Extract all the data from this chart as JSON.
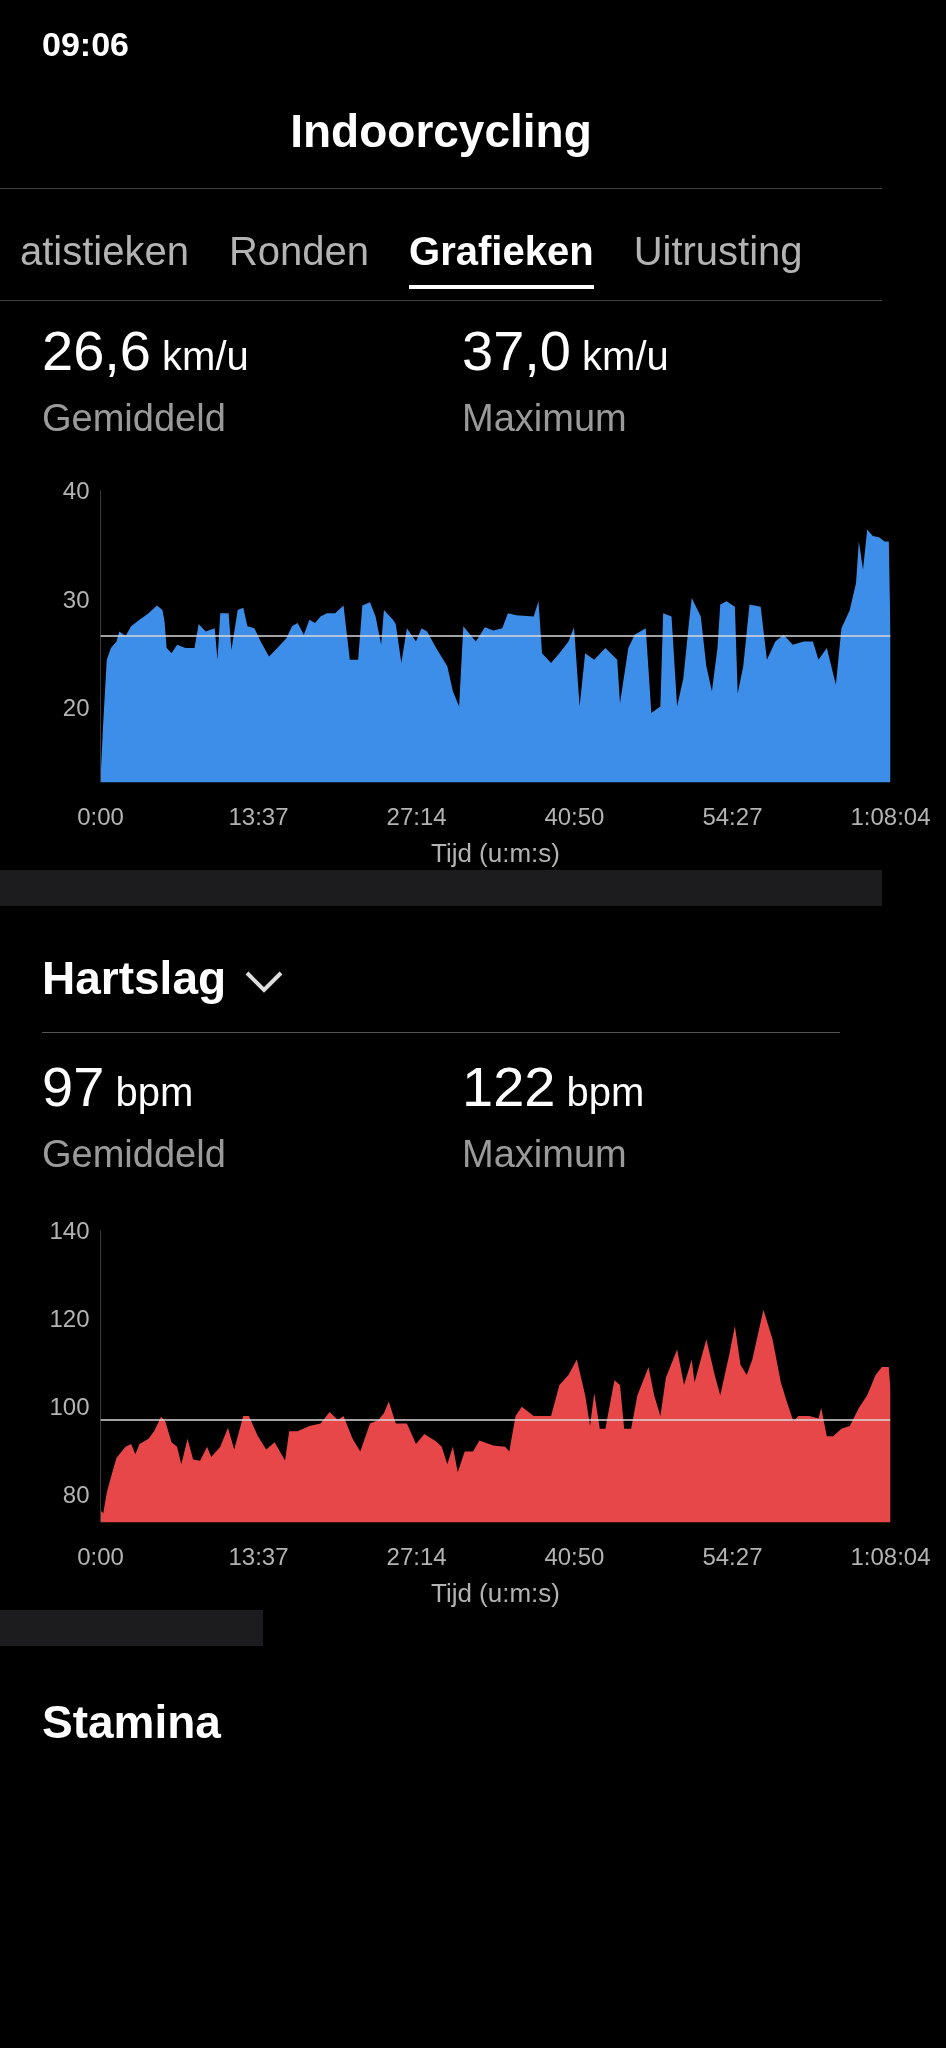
{
  "chart_data": [
    {
      "type": "area",
      "title": "Indoorcycling",
      "xlabel": "Tijd (u:m:s)",
      "annotations": [
        "09:06",
        "atistieken",
        "Ronden",
        "Grafieken",
        "Uitrusting",
        "26,6 km/u",
        "Gemiddeld",
        "37,0 km/u",
        "Maximum"
      ],
      "xlim": [
        0,
        68.067
      ],
      "ylim": [
        13.1,
        40
      ],
      "yticks": [
        20,
        30,
        40
      ],
      "xticks": [
        {
          "value": 0,
          "label": "0:00"
        },
        {
          "value": 13.617,
          "label": "13:37"
        },
        {
          "value": 27.233,
          "label": "27:14"
        },
        {
          "value": 40.833,
          "label": "40:50"
        },
        {
          "value": 54.45,
          "label": "54:27"
        },
        {
          "value": 68.067,
          "label": "1:08:04"
        }
      ],
      "grid": false,
      "ref_lines": [
        {
          "axis": "y",
          "value": 26.6,
          "color": "#d9d9d9"
        }
      ],
      "series": [
        {
          "color": "#3d8ee8",
          "x": [
            0,
            0.06,
            0.24,
            0.54,
            0.9,
            1.38,
            1.62,
            2.16,
            2.64,
            3.36,
            4.14,
            4.86,
            5.34,
            5.52,
            5.7,
            6.12,
            6.6,
            7.32,
            8.1,
            8.46,
            9.06,
            9.84,
            10.08,
            10.32,
            11.04,
            11.28,
            11.82,
            12.3,
            12.66,
            13.26,
            13.8,
            14.52,
            15.24,
            16.02,
            16.5,
            16.98,
            17.52,
            18,
            18.48,
            18.96,
            19.5,
            20.22,
            20.94,
            21.48,
            22.2,
            22.56,
            23.22,
            23.7,
            24.18,
            24.42,
            25.2,
            25.44,
            25.92,
            26.4,
            27.18,
            27.66,
            28.14,
            28.92,
            29.88,
            30.36,
            30.9,
            31.26,
            31.86,
            32.34,
            33.12,
            33.84,
            34.62,
            35.1,
            35.82,
            37.32,
            37.74,
            38.04,
            38.82,
            39.54,
            40.32,
            40.8,
            41.28,
            41.76,
            42.54,
            43.5,
            44.52,
            44.76,
            45.48,
            46.02,
            46.98,
            47.46,
            48.24,
            48.48,
            49.2,
            49.68,
            50.22,
            50.7,
            50.94,
            51.72,
            52.2,
            52.68,
            53.16,
            53.4,
            53.94,
            54.66,
            54.9,
            55.38,
            55.92,
            56.88,
            57.42,
            58.14,
            58.86,
            59.64,
            60.6,
            61.38,
            61.86,
            62.58,
            63.36,
            63.84,
            64.56,
            65.1,
            65.34,
            65.7,
            66.06,
            66.54,
            67.08,
            67.56,
            67.92,
            68.067
          ],
          "values": [
            13.1,
            14.7,
            18.7,
            24.4,
            25.5,
            26.1,
            27.0,
            26.6,
            27.5,
            28.1,
            28.7,
            29.4,
            29.0,
            27.9,
            25.5,
            25.0,
            25.8,
            25.5,
            25.5,
            27.7,
            27.0,
            27.3,
            24.4,
            28.7,
            28.7,
            25.3,
            29.0,
            29.2,
            27.5,
            27.3,
            26.1,
            24.7,
            25.5,
            26.4,
            27.5,
            27.8,
            26.7,
            28.1,
            27.8,
            28.4,
            28.7,
            28.7,
            29.4,
            24.4,
            24.4,
            29.4,
            29.7,
            28.4,
            25.8,
            29.0,
            28.1,
            27.7,
            24.1,
            27.3,
            26.1,
            27.3,
            27.0,
            25.5,
            23.8,
            21.5,
            20.1,
            27.5,
            26.7,
            26.1,
            27.4,
            27.1,
            27.3,
            28.7,
            28.5,
            28.4,
            29.8,
            25.0,
            24.1,
            25.0,
            26.1,
            27.4,
            20.1,
            25.0,
            24.4,
            25.5,
            24.4,
            20.4,
            25.5,
            26.7,
            27.3,
            19.5,
            20.1,
            28.7,
            28.4,
            20.1,
            22.7,
            27.8,
            30.1,
            28.4,
            23.8,
            21.5,
            25.5,
            29.5,
            29.8,
            29.3,
            21.3,
            23.8,
            29.5,
            29.3,
            24.4,
            26.1,
            26.7,
            25.8,
            26.1,
            26.1,
            24.4,
            25.5,
            22.1,
            27.3,
            29.0,
            31.5,
            35.3,
            32.7,
            36.4,
            35.8,
            35.7,
            35.3,
            35.3,
            26.7
          ]
        }
      ]
    },
    {
      "type": "area",
      "title": "Hartslag",
      "xlabel": "Tijd (u:m:s)",
      "annotations": [
        "97 bpm",
        "Gemiddeld",
        "122 bpm",
        "Maximum",
        "Stamina"
      ],
      "xlim": [
        0,
        68.067
      ],
      "ylim": [
        73.7,
        140
      ],
      "yticks": [
        80,
        100,
        120,
        140
      ],
      "xticks": [
        {
          "value": 0,
          "label": "0:00"
        },
        {
          "value": 13.617,
          "label": "13:37"
        },
        {
          "value": 27.233,
          "label": "27:14"
        },
        {
          "value": 40.833,
          "label": "40:50"
        },
        {
          "value": 54.45,
          "label": "54:27"
        },
        {
          "value": 68.067,
          "label": "1:08:04"
        }
      ],
      "grid": false,
      "ref_lines": [
        {
          "axis": "y",
          "value": 97,
          "color": "#d9d9d9"
        }
      ],
      "series": [
        {
          "color": "#e8474a",
          "x": [
            0,
            0.24,
            0.54,
            0.9,
            1.38,
            2.16,
            2.64,
            3,
            3.36,
            4.14,
            4.62,
            5.22,
            5.58,
            6.12,
            6.6,
            6.96,
            7.5,
            7.98,
            8.58,
            9.18,
            9.54,
            10.32,
            10.98,
            11.52,
            12.3,
            12.78,
            13.56,
            14.28,
            15,
            15.9,
            16.26,
            16.98,
            18,
            18.96,
            19.74,
            20.46,
            20.94,
            21.72,
            22.38,
            23.22,
            23.94,
            24.42,
            24.84,
            25.44,
            26.4,
            27.18,
            27.9,
            28.92,
            29.4,
            29.88,
            30.36,
            30.78,
            31.38,
            32.1,
            32.64,
            33.84,
            34.86,
            35.22,
            35.76,
            36.3,
            37.32,
            38.28,
            38.82,
            39.54,
            40.32,
            41.04,
            41.76,
            42.18,
            42.54,
            43.02,
            43.5,
            44.28,
            44.76,
            45.12,
            45.72,
            46.26,
            47.22,
            47.7,
            48.24,
            48.72,
            49.68,
            50.28,
            50.94,
            51.18,
            52.2,
            52.92,
            53.4,
            54.18,
            54.66,
            55.14,
            55.68,
            56.16,
            57.12,
            57.9,
            58.62,
            59.1,
            59.7,
            60.12,
            61.08,
            61.86,
            62.1,
            62.58,
            63.12,
            63.84,
            64.56,
            65.34,
            66.06,
            66.78,
            67.32,
            67.92,
            68.067
          ],
          "values": [
            76.4,
            75.8,
            80.5,
            84.0,
            88.4,
            90.9,
            91.5,
            89.2,
            91.5,
            92.7,
            94.4,
            97.7,
            96.7,
            91.9,
            90.9,
            86.9,
            92.7,
            88.0,
            87.7,
            90.9,
            88.6,
            90.9,
            95.2,
            90.3,
            97.9,
            97.9,
            93.3,
            90.3,
            91.9,
            87.8,
            94.4,
            94.4,
            95.6,
            96.2,
            98.8,
            97.0,
            97.9,
            92.7,
            89.8,
            96.2,
            97.0,
            98.5,
            101.2,
            96.2,
            96.2,
            91.5,
            93.8,
            92.1,
            90.9,
            86.9,
            90.9,
            85.1,
            89.8,
            89.8,
            92.3,
            91.2,
            90.9,
            89.8,
            97.9,
            100.0,
            97.9,
            97.9,
            97.9,
            104.9,
            107.2,
            110.7,
            102.6,
            95.6,
            103.1,
            95.0,
            95.0,
            106.0,
            104.9,
            95.0,
            95.0,
            102.6,
            109.0,
            102.6,
            97.9,
            106.6,
            113.0,
            104.9,
            110.7,
            105.5,
            115.3,
            107.2,
            102.6,
            111.9,
            118.3,
            109.5,
            107.2,
            110.7,
            122,
            115.3,
            105.5,
            101.4,
            96.7,
            97.9,
            97.9,
            97.3,
            99.7,
            93.3,
            93.3,
            95.0,
            95.6,
            99.7,
            102.6,
            107.2,
            109.0,
            109.0,
            103.7
          ]
        }
      ]
    }
  ]
}
